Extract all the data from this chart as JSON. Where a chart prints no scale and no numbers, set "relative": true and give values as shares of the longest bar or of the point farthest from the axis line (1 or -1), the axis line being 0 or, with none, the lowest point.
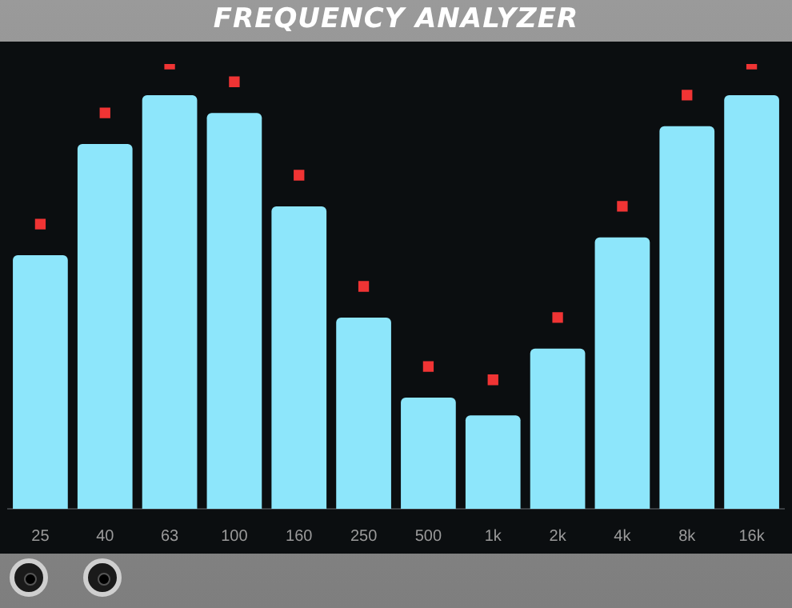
{
  "chart_data": {
    "type": "bar",
    "title": "FREQUENCY ANALYZER",
    "relative": true,
    "grid": false,
    "categories": [
      "25",
      "40",
      "63",
      "100",
      "160",
      "250",
      "500",
      "1k",
      "2k",
      "4k",
      "8k",
      "16k"
    ],
    "series": [
      {
        "color": "#8de6fb",
        "values": [
          0.57,
          0.82,
          0.93,
          0.89,
          0.68,
          0.43,
          0.25,
          0.21,
          0.36,
          0.61,
          0.86,
          0.93
        ]
      },
      {
        "type": "scatter",
        "color": "#f03434",
        "marker": "square",
        "x": [
          "25",
          "40",
          "63",
          "100",
          "160",
          "250",
          "500",
          "1k",
          "2k",
          "4k",
          "8k",
          "16k"
        ],
        "values": [
          0.64,
          0.89,
          1,
          0.96,
          0.75,
          0.5,
          0.32,
          0.29,
          0.43,
          0.68,
          0.93,
          1
        ]
      }
    ]
  }
}
